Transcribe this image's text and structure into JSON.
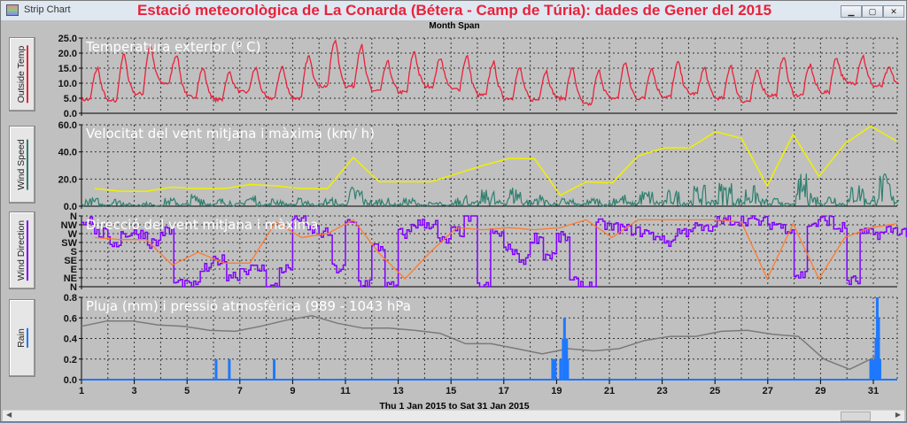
{
  "window": {
    "app_name": "Strip Chart",
    "title": "Estació meteorològica de La Conarda (Bétera - Camp de Túria): dades de Gener del 2015",
    "span_label": "Month Span",
    "date_range": "Thu 1 Jan 2015  to  Sat 31 Jan 2015",
    "controls": [
      "minimize",
      "maximize",
      "close"
    ]
  },
  "sidebar": [
    {
      "label": "Outside Temp",
      "color": "#e8223a"
    },
    {
      "label": "Wind Speed",
      "color": "#2f7f6f"
    },
    {
      "label": "Wind Direction",
      "color": "#8000ff"
    },
    {
      "label": "Rain",
      "color": "#1e78ff"
    }
  ],
  "chart_data": [
    {
      "type": "line",
      "title": "Temperatura exterior (º C)",
      "ylim": [
        0,
        25
      ],
      "yticks": [
        "0.0",
        "5.0",
        "10.0",
        "15.0",
        "20.0",
        "25.0"
      ],
      "grid": true,
      "color": "#e8223a",
      "daily_max": [
        15,
        19.5,
        22.5,
        19.5,
        15,
        13.5,
        15,
        15.5,
        19,
        24.5,
        22.5,
        17,
        20.5,
        18.5,
        19,
        17,
        15,
        14,
        15,
        14,
        17,
        15,
        17,
        15,
        16,
        14,
        19,
        16,
        18.5,
        19,
        15
      ],
      "daily_min": [
        4.5,
        4,
        6.5,
        10,
        5.5,
        4.5,
        7,
        5,
        5,
        9,
        9,
        7.5,
        7,
        9,
        8,
        6,
        5,
        4.5,
        5,
        3,
        5,
        5,
        5.5,
        6.5,
        5,
        4,
        6,
        6,
        7,
        10,
        9
      ]
    },
    {
      "type": "line",
      "title": "Velocitat del vent mitjana i màxima (km/ h)",
      "ylim": [
        0,
        60
      ],
      "yticks": [
        "0.0",
        "20.0",
        "40.0",
        "60.0"
      ],
      "grid": true,
      "series": [
        {
          "color": "#2f7f6f",
          "daily_avg": [
            2,
            2,
            1,
            2,
            3,
            2,
            3,
            2,
            2,
            2,
            5,
            2,
            2,
            1,
            3,
            4,
            5,
            3,
            2,
            2,
            3,
            4,
            4,
            5,
            6,
            5,
            2,
            8,
            3,
            6,
            8
          ]
        },
        {
          "color": "#f0f000",
          "daily_max": [
            13,
            11,
            11,
            14,
            13,
            13,
            16,
            15,
            13,
            13,
            36,
            18,
            18,
            18,
            24,
            30,
            35,
            35,
            8,
            18,
            17,
            37,
            43,
            43,
            55,
            50,
            15,
            53,
            22,
            46,
            59,
            48
          ]
        }
      ]
    },
    {
      "type": "line",
      "title": "Direcció del vent mitjana i màxima",
      "yticks": [
        "N",
        "NE",
        "E",
        "SE",
        "S",
        "SW",
        "W",
        "NW",
        "N"
      ],
      "ylim": [
        0,
        360
      ],
      "grid": true,
      "series": [
        {
          "color": "#8000ff",
          "half_daily": [
            340,
            270,
            225,
            270,
            270,
            225,
            280,
            20,
            0,
            90,
            135,
            60,
            90,
            90,
            0,
            90,
            350,
            290,
            270,
            90,
            320,
            20,
            200,
            0,
            270,
            320,
            320,
            230,
            280,
            350,
            0,
            270,
            190,
            140,
            250,
            160,
            250,
            20,
            0,
            315,
            300,
            290,
            280,
            260,
            230,
            280,
            300,
            290,
            330,
            340,
            340,
            330,
            320,
            300,
            60,
            320,
            340,
            300,
            30,
            270,
            270,
            290,
            280
          ]
        },
        {
          "color": "#ff7a30",
          "daily": [
            250,
            240,
            240,
            110,
            175,
            120,
            120,
            330,
            250,
            270,
            340,
            170,
            40,
            180,
            300,
            290,
            300,
            290,
            300,
            340,
            250,
            340,
            340,
            340,
            340,
            330,
            40,
            320,
            40,
            250,
            300,
            320
          ]
        }
      ]
    },
    {
      "type": "bar+line",
      "title": "Pluja (mm) i pressió atmosfèrica (989 - 1043 hPa",
      "ylim": [
        0,
        0.8
      ],
      "yticks": [
        "0.0",
        "0.2",
        "0.4",
        "0.6",
        "0.8"
      ],
      "grid": true,
      "xticks": [
        "1",
        "3",
        "5",
        "7",
        "9",
        "11",
        "13",
        "15",
        "17",
        "19",
        "21",
        "23",
        "25",
        "27",
        "29",
        "31"
      ],
      "rain": {
        "color": "#1e78ff",
        "events": [
          [
            6.1,
            0.2
          ],
          [
            6.6,
            0.2
          ],
          [
            8.3,
            0.2
          ],
          [
            18.85,
            0.2
          ],
          [
            18.9,
            0.2
          ],
          [
            18.95,
            0.2
          ],
          [
            19.15,
            0.2
          ],
          [
            19.25,
            0.4
          ],
          [
            19.3,
            0.6
          ],
          [
            19.38,
            0.4
          ],
          [
            19.42,
            0.2
          ],
          [
            30.9,
            0.2
          ],
          [
            31.0,
            0.2
          ],
          [
            31.1,
            0.4
          ],
          [
            31.15,
            0.8
          ],
          [
            31.2,
            0.6
          ],
          [
            31.25,
            0.2
          ]
        ]
      },
      "pressure": {
        "color": "#7a7a7a",
        "unit": "hPa",
        "daily": [
          1024,
          1027.5,
          1027.5,
          1024.8,
          1024,
          1021.4,
          1020.7,
          1024,
          1028,
          1030.9,
          1026,
          1022.8,
          1022.8,
          1021.4,
          1019.4,
          1012.6,
          1012.6,
          1009.3,
          1005.9,
          1009.3,
          1007.9,
          1009.3,
          1014.7,
          1017.4,
          1017.4,
          1020.7,
          1021.4,
          1018.7,
          1017.4,
          1002.5,
          995.8,
          1003.9
        ]
      }
    }
  ]
}
